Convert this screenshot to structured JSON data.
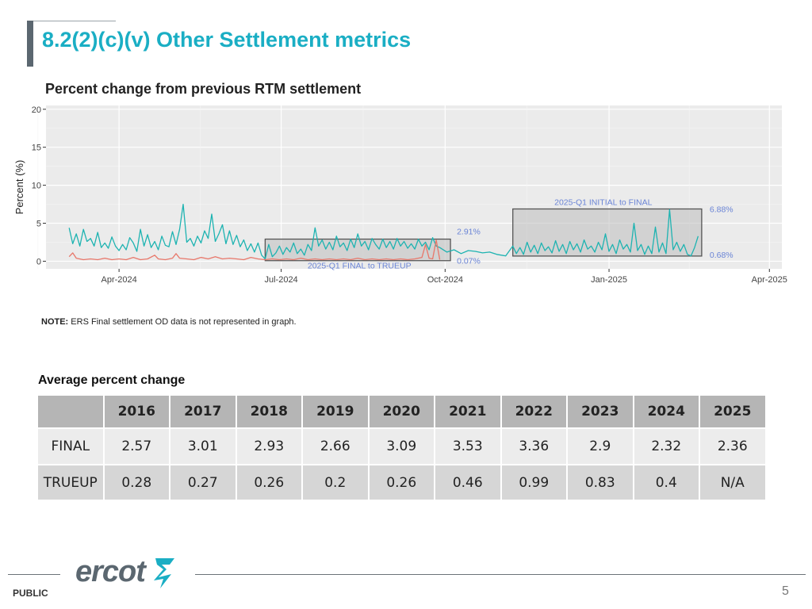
{
  "slide": {
    "title": "8.2(2)(c)(v) Other Settlement metrics",
    "footer_label": "PUBLIC",
    "page_number": "5",
    "logo_text": "ercot"
  },
  "chart_data": {
    "type": "line",
    "title": "Percent change from previous RTM settlement",
    "ylabel": "Percent (%)",
    "xlabel": "",
    "ylim": [
      0,
      20
    ],
    "xlim": [
      "2024-02-20",
      "2025-04-08"
    ],
    "yticks": [
      0,
      5,
      10,
      15,
      20
    ],
    "xticks": [
      {
        "date": "2024-04-01",
        "label": "Apr-2024"
      },
      {
        "date": "2024-07-01",
        "label": "Jul-2024"
      },
      {
        "date": "2024-10-01",
        "label": "Oct-2024"
      },
      {
        "date": "2025-01-01",
        "label": "Jan-2025"
      },
      {
        "date": "2025-04-01",
        "label": "Apr-2025"
      }
    ],
    "grid": true,
    "series": [
      {
        "color": "#1db3b1",
        "points": [
          [
            "2024-03-04",
            4.4
          ],
          [
            "2024-03-06",
            2.3
          ],
          [
            "2024-03-08",
            3.6
          ],
          [
            "2024-03-10",
            2.0
          ],
          [
            "2024-03-12",
            4.2
          ],
          [
            "2024-03-14",
            2.6
          ],
          [
            "2024-03-16",
            3.0
          ],
          [
            "2024-03-18",
            2.0
          ],
          [
            "2024-03-20",
            3.8
          ],
          [
            "2024-03-22",
            1.8
          ],
          [
            "2024-03-24",
            2.4
          ],
          [
            "2024-03-26",
            1.7
          ],
          [
            "2024-03-28",
            3.2
          ],
          [
            "2024-03-30",
            2.0
          ],
          [
            "2024-04-01",
            1.4
          ],
          [
            "2024-04-03",
            2.2
          ],
          [
            "2024-04-05",
            1.5
          ],
          [
            "2024-04-07",
            3.1
          ],
          [
            "2024-04-09",
            2.4
          ],
          [
            "2024-04-11",
            1.3
          ],
          [
            "2024-04-13",
            4.2
          ],
          [
            "2024-04-15",
            2.0
          ],
          [
            "2024-04-17",
            3.5
          ],
          [
            "2024-04-19",
            1.8
          ],
          [
            "2024-04-21",
            2.6
          ],
          [
            "2024-04-23",
            1.5
          ],
          [
            "2024-04-25",
            3.3
          ],
          [
            "2024-04-27",
            2.1
          ],
          [
            "2024-04-29",
            1.9
          ],
          [
            "2024-05-01",
            3.9
          ],
          [
            "2024-05-03",
            2.2
          ],
          [
            "2024-05-05",
            4.2
          ],
          [
            "2024-05-07",
            7.5
          ],
          [
            "2024-05-09",
            2.5
          ],
          [
            "2024-05-11",
            3.0
          ],
          [
            "2024-05-13",
            2.0
          ],
          [
            "2024-05-15",
            3.3
          ],
          [
            "2024-05-17",
            2.4
          ],
          [
            "2024-05-19",
            4.0
          ],
          [
            "2024-05-21",
            3.0
          ],
          [
            "2024-05-23",
            6.2
          ],
          [
            "2024-05-25",
            2.6
          ],
          [
            "2024-05-27",
            3.6
          ],
          [
            "2024-05-29",
            4.8
          ],
          [
            "2024-05-31",
            2.3
          ],
          [
            "2024-06-02",
            4.0
          ],
          [
            "2024-06-04",
            2.2
          ],
          [
            "2024-06-06",
            3.4
          ],
          [
            "2024-06-08",
            1.9
          ],
          [
            "2024-06-10",
            2.8
          ],
          [
            "2024-06-12",
            1.4
          ],
          [
            "2024-06-14",
            2.3
          ],
          [
            "2024-06-16",
            1.2
          ],
          [
            "2024-06-18",
            2.4
          ],
          [
            "2024-06-20",
            0.8
          ],
          [
            "2024-06-22",
            0.3
          ],
          [
            "2024-06-24",
            2.2
          ],
          [
            "2024-06-26",
            0.6
          ],
          [
            "2024-06-28",
            1.1
          ],
          [
            "2024-06-30",
            2.0
          ],
          [
            "2024-07-02",
            0.9
          ],
          [
            "2024-07-04",
            1.8
          ],
          [
            "2024-07-06",
            1.2
          ],
          [
            "2024-07-08",
            2.4
          ],
          [
            "2024-07-10",
            1.0
          ],
          [
            "2024-07-12",
            1.6
          ],
          [
            "2024-07-14",
            0.8
          ],
          [
            "2024-07-16",
            2.2
          ],
          [
            "2024-07-18",
            1.4
          ],
          [
            "2024-07-20",
            4.4
          ],
          [
            "2024-07-22",
            2.0
          ],
          [
            "2024-07-24",
            2.8
          ],
          [
            "2024-07-26",
            1.6
          ],
          [
            "2024-07-28",
            2.5
          ],
          [
            "2024-07-30",
            1.5
          ],
          [
            "2024-08-01",
            3.3
          ],
          [
            "2024-08-03",
            1.9
          ],
          [
            "2024-08-05",
            2.4
          ],
          [
            "2024-08-07",
            1.4
          ],
          [
            "2024-08-09",
            2.9
          ],
          [
            "2024-08-11",
            1.8
          ],
          [
            "2024-08-13",
            3.6
          ],
          [
            "2024-08-15",
            2.0
          ],
          [
            "2024-08-17",
            2.6
          ],
          [
            "2024-08-19",
            1.5
          ],
          [
            "2024-08-21",
            3.0
          ],
          [
            "2024-08-23",
            2.2
          ],
          [
            "2024-08-25",
            1.6
          ],
          [
            "2024-08-27",
            2.9
          ],
          [
            "2024-08-29",
            1.8
          ],
          [
            "2024-08-31",
            2.6
          ],
          [
            "2024-09-02",
            1.6
          ],
          [
            "2024-09-04",
            3.0
          ],
          [
            "2024-09-06",
            2.0
          ],
          [
            "2024-09-08",
            2.6
          ],
          [
            "2024-09-10",
            1.7
          ],
          [
            "2024-09-12",
            2.3
          ],
          [
            "2024-09-14",
            1.6
          ],
          [
            "2024-09-16",
            2.9
          ],
          [
            "2024-09-18",
            2.0
          ],
          [
            "2024-09-20",
            2.5
          ],
          [
            "2024-09-22",
            1.5
          ],
          [
            "2024-09-24",
            3.1
          ],
          [
            "2024-09-26",
            2.0
          ],
          [
            "2024-09-28",
            1.8
          ],
          [
            "2024-10-02",
            1.2
          ],
          [
            "2024-10-06",
            1.5
          ],
          [
            "2024-10-10",
            1.0
          ],
          [
            "2024-10-14",
            1.4
          ],
          [
            "2024-10-18",
            1.3
          ],
          [
            "2024-10-22",
            1.1
          ],
          [
            "2024-10-26",
            1.2
          ],
          [
            "2024-10-30",
            0.9
          ],
          [
            "2024-11-04",
            0.7
          ],
          [
            "2024-11-08",
            2.0
          ],
          [
            "2024-11-10",
            1.0
          ],
          [
            "2024-11-12",
            1.8
          ],
          [
            "2024-11-14",
            0.9
          ],
          [
            "2024-11-16",
            2.5
          ],
          [
            "2024-11-18",
            1.2
          ],
          [
            "2024-11-20",
            2.1
          ],
          [
            "2024-11-22",
            1.0
          ],
          [
            "2024-11-24",
            2.4
          ],
          [
            "2024-11-26",
            1.4
          ],
          [
            "2024-11-28",
            1.9
          ],
          [
            "2024-11-30",
            1.1
          ],
          [
            "2024-12-02",
            2.7
          ],
          [
            "2024-12-04",
            1.3
          ],
          [
            "2024-12-06",
            2.2
          ],
          [
            "2024-12-08",
            1.0
          ],
          [
            "2024-12-10",
            2.6
          ],
          [
            "2024-12-12",
            1.5
          ],
          [
            "2024-12-14",
            2.3
          ],
          [
            "2024-12-16",
            1.2
          ],
          [
            "2024-12-18",
            2.8
          ],
          [
            "2024-12-20",
            1.6
          ],
          [
            "2024-12-22",
            2.0
          ],
          [
            "2024-12-24",
            1.2
          ],
          [
            "2024-12-26",
            2.5
          ],
          [
            "2024-12-28",
            1.5
          ],
          [
            "2024-12-30",
            3.6
          ],
          [
            "2025-01-01",
            1.3
          ],
          [
            "2025-01-03",
            2.2
          ],
          [
            "2025-01-05",
            1.0
          ],
          [
            "2025-01-07",
            2.8
          ],
          [
            "2025-01-09",
            1.6
          ],
          [
            "2025-01-11",
            2.2
          ],
          [
            "2025-01-13",
            1.2
          ],
          [
            "2025-01-15",
            5.0
          ],
          [
            "2025-01-17",
            1.4
          ],
          [
            "2025-01-19",
            2.2
          ],
          [
            "2025-01-21",
            0.9
          ],
          [
            "2025-01-23",
            2.0
          ],
          [
            "2025-01-25",
            1.0
          ],
          [
            "2025-01-27",
            4.5
          ],
          [
            "2025-01-29",
            1.2
          ],
          [
            "2025-01-31",
            2.4
          ],
          [
            "2025-02-02",
            1.0
          ],
          [
            "2025-02-04",
            6.8
          ],
          [
            "2025-02-06",
            1.5
          ],
          [
            "2025-02-08",
            2.5
          ],
          [
            "2025-02-10",
            1.3
          ],
          [
            "2025-02-12",
            2.2
          ],
          [
            "2025-02-14",
            0.9
          ],
          [
            "2025-02-16",
            0.7
          ],
          [
            "2025-02-18",
            1.8
          ],
          [
            "2025-02-20",
            3.3
          ]
        ]
      },
      {
        "color": "#e8776a",
        "points": [
          [
            "2024-03-04",
            0.6
          ],
          [
            "2024-03-06",
            1.1
          ],
          [
            "2024-03-08",
            0.4
          ],
          [
            "2024-03-12",
            0.2
          ],
          [
            "2024-03-16",
            0.3
          ],
          [
            "2024-03-20",
            0.2
          ],
          [
            "2024-03-24",
            0.4
          ],
          [
            "2024-03-28",
            0.2
          ],
          [
            "2024-04-01",
            0.3
          ],
          [
            "2024-04-05",
            0.2
          ],
          [
            "2024-04-09",
            0.5
          ],
          [
            "2024-04-13",
            0.2
          ],
          [
            "2024-04-17",
            0.3
          ],
          [
            "2024-04-21",
            0.8
          ],
          [
            "2024-04-23",
            0.3
          ],
          [
            "2024-04-27",
            0.2
          ],
          [
            "2024-05-01",
            0.4
          ],
          [
            "2024-05-03",
            1.0
          ],
          [
            "2024-05-05",
            0.4
          ],
          [
            "2024-05-09",
            0.3
          ],
          [
            "2024-05-13",
            0.2
          ],
          [
            "2024-05-17",
            0.5
          ],
          [
            "2024-05-21",
            0.3
          ],
          [
            "2024-05-25",
            0.6
          ],
          [
            "2024-05-29",
            0.3
          ],
          [
            "2024-06-02",
            0.4
          ],
          [
            "2024-06-06",
            0.3
          ],
          [
            "2024-06-10",
            0.2
          ],
          [
            "2024-06-14",
            0.5
          ],
          [
            "2024-06-18",
            0.3
          ],
          [
            "2024-06-22",
            0.2
          ],
          [
            "2024-06-26",
            0.3
          ],
          [
            "2024-06-30",
            0.2
          ],
          [
            "2024-07-04",
            0.3
          ],
          [
            "2024-07-08",
            0.2
          ],
          [
            "2024-07-12",
            0.4
          ],
          [
            "2024-07-16",
            0.2
          ],
          [
            "2024-07-20",
            0.3
          ],
          [
            "2024-07-24",
            0.2
          ],
          [
            "2024-07-28",
            0.3
          ],
          [
            "2024-08-01",
            0.2
          ],
          [
            "2024-08-05",
            0.3
          ],
          [
            "2024-08-09",
            0.2
          ],
          [
            "2024-08-13",
            0.4
          ],
          [
            "2024-08-17",
            0.2
          ],
          [
            "2024-08-21",
            0.3
          ],
          [
            "2024-08-25",
            0.2
          ],
          [
            "2024-08-29",
            0.3
          ],
          [
            "2024-09-02",
            0.2
          ],
          [
            "2024-09-06",
            0.3
          ],
          [
            "2024-09-10",
            0.2
          ],
          [
            "2024-09-14",
            0.3
          ],
          [
            "2024-09-18",
            0.5
          ],
          [
            "2024-09-20",
            2.2
          ],
          [
            "2024-09-22",
            0.4
          ],
          [
            "2024-09-24",
            0.3
          ],
          [
            "2024-09-26",
            2.8
          ],
          [
            "2024-09-28",
            0.2
          ]
        ]
      }
    ],
    "annotations": [
      {
        "label": "2025-Q1 FINAL to TRUEUP",
        "x_range": [
          "2024-06-22",
          "2024-10-04"
        ],
        "y_range": [
          0.07,
          2.91
        ],
        "upper_label": "2.91%",
        "lower_label": "0.07%"
      },
      {
        "label": "2025-Q1 INITIAL to FINAL",
        "x_range": [
          "2024-11-08",
          "2025-02-22"
        ],
        "y_range": [
          0.68,
          6.88
        ],
        "upper_label": "6.88%",
        "lower_label": "0.68%"
      }
    ]
  },
  "note": {
    "prefix": "NOTE:",
    "text": "ERS Final settlement OD data is not represented in graph."
  },
  "avg_table": {
    "title": "Average percent change",
    "headers": [
      "",
      "2016",
      "2017",
      "2018",
      "2019",
      "2020",
      "2021",
      "2022",
      "2023",
      "2024",
      "2025"
    ],
    "rows": [
      {
        "label": "FINAL",
        "values": [
          "2.57",
          "3.01",
          "2.93",
          "2.66",
          "3.09",
          "3.53",
          "3.36",
          "2.9",
          "2.32",
          "2.36"
        ]
      },
      {
        "label": "TRUEUP",
        "values": [
          "0.28",
          "0.27",
          "0.26",
          "0.2",
          "0.26",
          "0.46",
          "0.99",
          "0.83",
          "0.4",
          "N/A"
        ]
      }
    ]
  }
}
